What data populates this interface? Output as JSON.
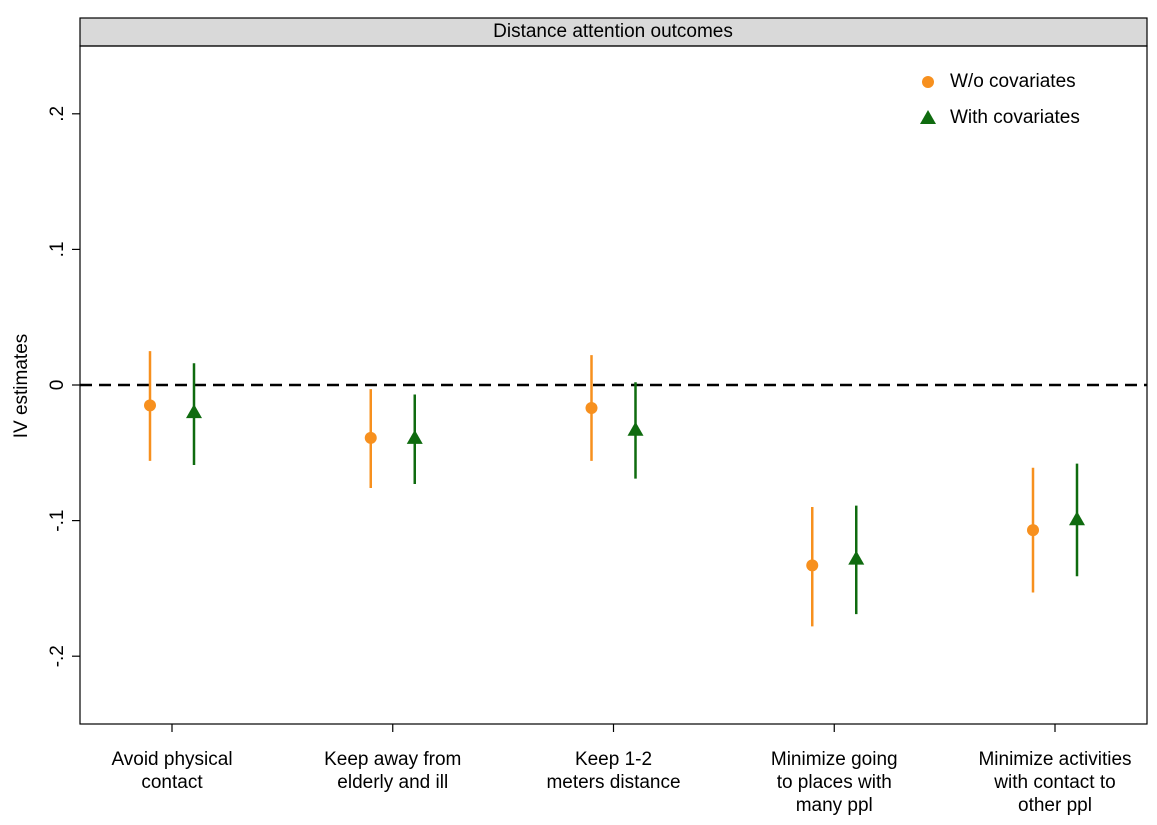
{
  "chart_data": {
    "type": "errorbar",
    "title": "Distance attention outcomes",
    "y_label": "IV estimates",
    "categories": [
      [
        "Avoid physical",
        "contact"
      ],
      [
        "Keep away from",
        "elderly and ill"
      ],
      [
        "Keep 1-2",
        "meters distance"
      ],
      [
        "Minimize going",
        "to places with",
        "many ppl"
      ],
      [
        "Minimize activities",
        "with contact to",
        "other ppl"
      ]
    ],
    "series": [
      {
        "name": "W/o covariates",
        "color": "#f7901e",
        "marker": "circle",
        "values": [
          -0.015,
          -0.039,
          -0.017,
          -0.133,
          -0.107
        ],
        "lower": [
          -0.056,
          -0.076,
          -0.056,
          -0.178,
          -0.153
        ],
        "upper": [
          0.025,
          -0.003,
          0.022,
          -0.09,
          -0.061
        ]
      },
      {
        "name": "With covariates",
        "color": "#0f6b0f",
        "marker": "triangle",
        "values": [
          -0.02,
          -0.039,
          -0.033,
          -0.128,
          -0.099
        ],
        "lower": [
          -0.059,
          -0.073,
          -0.069,
          -0.169,
          -0.141
        ],
        "upper": [
          0.016,
          -0.007,
          0.002,
          -0.089,
          -0.058
        ]
      }
    ],
    "ylim": [
      -0.25,
      0.25
    ],
    "yticks": [
      {
        "value": -0.2,
        "label": "-.2"
      },
      {
        "value": -0.1,
        "label": "-.1"
      },
      0,
      {
        "value": 0.1,
        "label": ".1"
      },
      {
        "value": 0.2,
        "label": ".2"
      }
    ],
    "reference_line": 0,
    "legend": "top-right"
  }
}
